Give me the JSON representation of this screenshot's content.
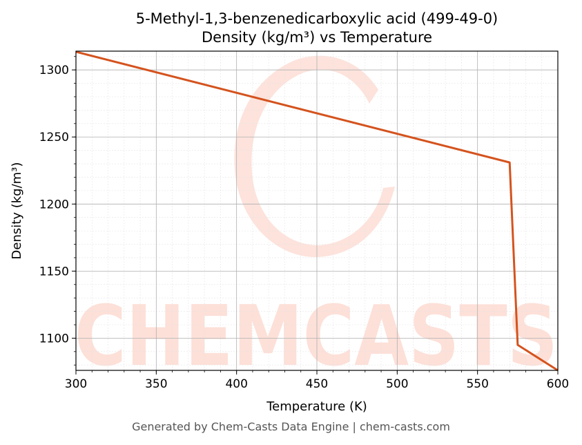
{
  "chart_data": {
    "type": "line",
    "title_line1": "5-Methyl-1,3-benzenedicarboxylic acid (499-49-0)",
    "title_line2": "Density (kg/m³) vs Temperature",
    "xlabel": "Temperature (K)",
    "ylabel": "Density (kg/m³)",
    "xlim": [
      300,
      600
    ],
    "ylim": [
      1076,
      1314
    ],
    "xticks": [
      300,
      350,
      400,
      450,
      500,
      550,
      600
    ],
    "yticks": [
      1100,
      1150,
      1200,
      1250,
      1300
    ],
    "grid": true,
    "series": [
      {
        "color": "#d4531e",
        "x": [
          300,
          570,
          575,
          600
        ],
        "y": [
          1313.5,
          1231,
          1095,
          1076
        ]
      }
    ]
  },
  "watermark": {
    "text": "CHEMCASTS",
    "color": "#fde0d8"
  },
  "footer": "Generated by Chem-Casts Data Engine | chem-casts.com"
}
